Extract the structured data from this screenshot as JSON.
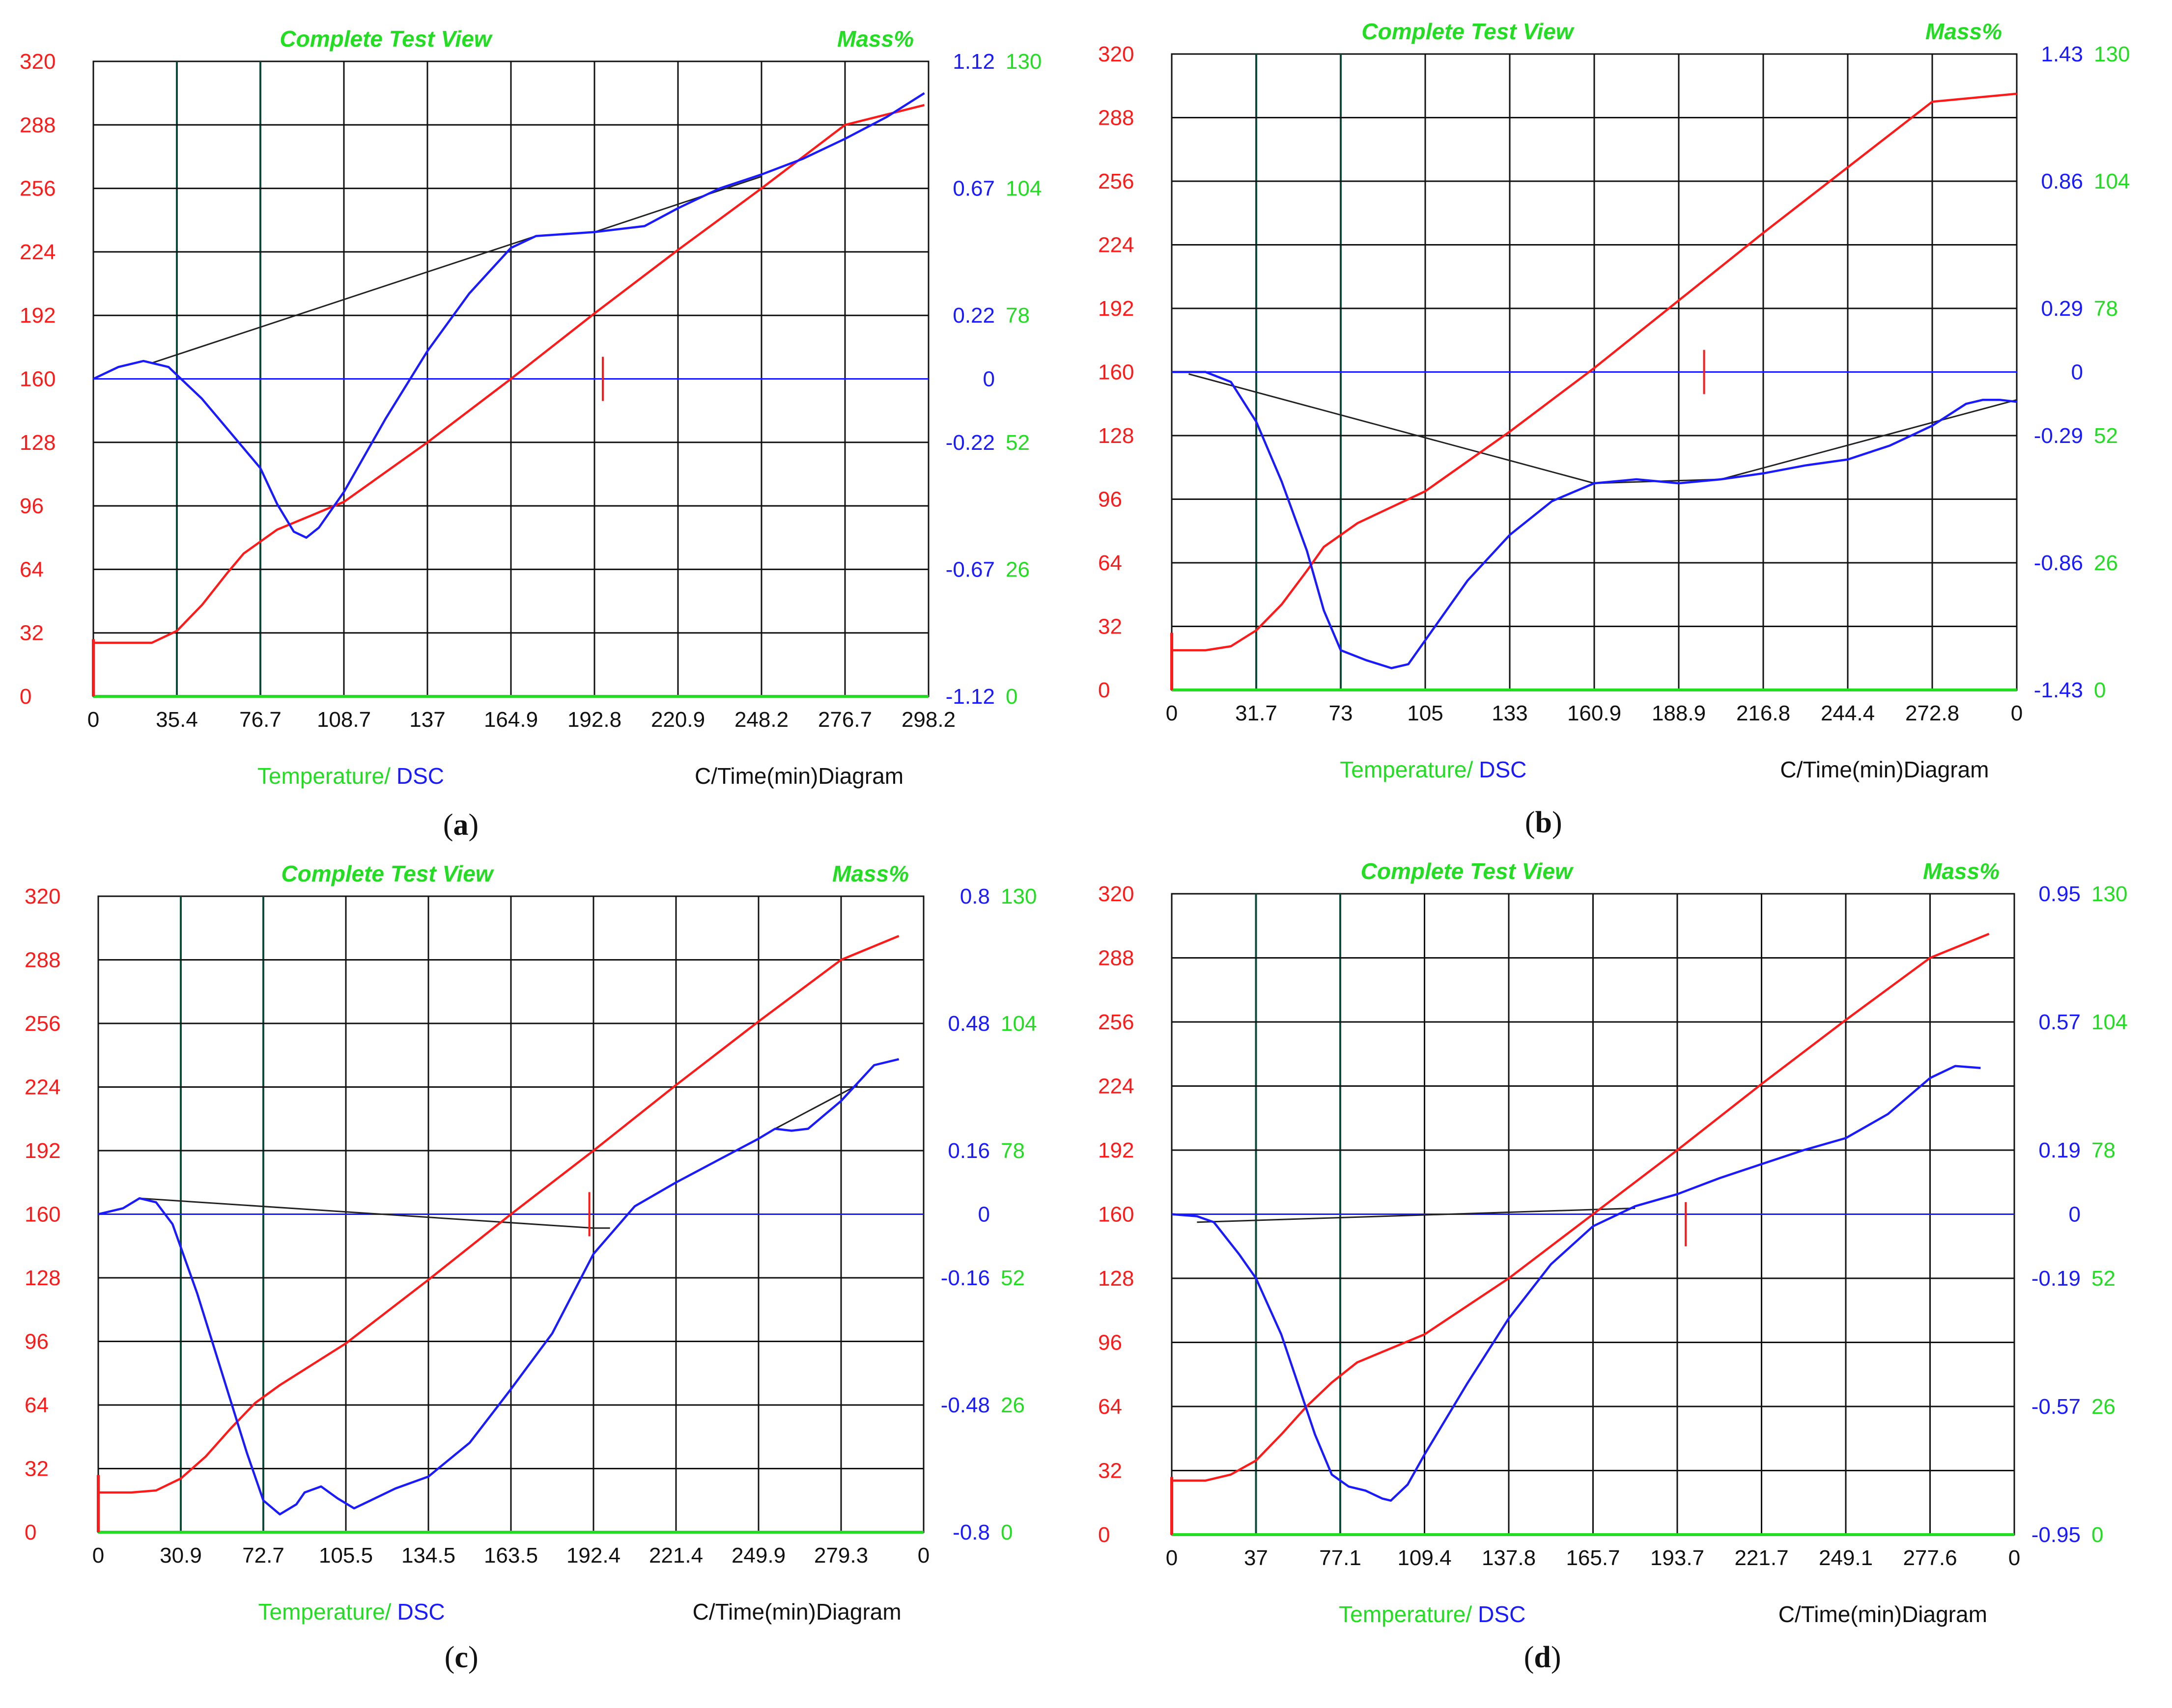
{
  "chart_data": [
    {
      "type": "line",
      "caption": "a",
      "title": "Complete Test View",
      "mass_label": "Mass%",
      "xlabel_left": "Temperature/",
      "xlabel_dsc": "DSC",
      "xlabel_right": "C/Time(min)Diagram",
      "x_ticks": [
        "0",
        "35.4",
        "76.7",
        "108.7",
        "137",
        "164.9",
        "192.8",
        "220.9",
        "248.2",
        "276.7",
        "298.2"
      ],
      "temp_ticks": [
        "320",
        "288",
        "256",
        "224",
        "192",
        "160",
        "128",
        "96",
        "64",
        "32",
        "0"
      ],
      "dsc_ticks": [
        "1.12",
        "",
        "0.67",
        "",
        "0.22",
        "0",
        "-0.22",
        "",
        "-0.67",
        "",
        "-1.12"
      ],
      "mass_ticks": [
        "130",
        "",
        "104",
        "",
        "78",
        "",
        "52",
        "",
        "26",
        "",
        "0"
      ],
      "xlim": [
        0,
        10
      ],
      "ylim": [
        0,
        320
      ],
      "temperature": [
        [
          0,
          27
        ],
        [
          0.4,
          27
        ],
        [
          0.7,
          27
        ],
        [
          1,
          33
        ],
        [
          1.3,
          46
        ],
        [
          1.6,
          62
        ],
        [
          1.8,
          72
        ],
        [
          2.2,
          84
        ],
        [
          3,
          98
        ],
        [
          4,
          128
        ],
        [
          5,
          160
        ],
        [
          6,
          193
        ],
        [
          7,
          225
        ],
        [
          8,
          256
        ],
        [
          9,
          288
        ],
        [
          9.95,
          298
        ]
      ],
      "dsc": [
        [
          0,
          160
        ],
        [
          0.3,
          166
        ],
        [
          0.6,
          169
        ],
        [
          0.9,
          166
        ],
        [
          1.3,
          150
        ],
        [
          1.7,
          130
        ],
        [
          2,
          115
        ],
        [
          2.2,
          97
        ],
        [
          2.4,
          83
        ],
        [
          2.55,
          80
        ],
        [
          2.7,
          85
        ],
        [
          3,
          103
        ],
        [
          3.5,
          140
        ],
        [
          4,
          174
        ],
        [
          4.5,
          203
        ],
        [
          5,
          226
        ],
        [
          5.3,
          232
        ],
        [
          6,
          234
        ],
        [
          6.6,
          237
        ],
        [
          7,
          246
        ],
        [
          7.5,
          256
        ],
        [
          8,
          263
        ],
        [
          8.5,
          271
        ],
        [
          9,
          281
        ],
        [
          9.5,
          292
        ],
        [
          9.95,
          304
        ]
      ],
      "baseline": [
        [
          0.7,
          168
        ],
        [
          5.3,
          232
        ],
        [
          6,
          234
        ],
        [
          8,
          262
        ]
      ],
      "marker": [
        6.1,
        160
      ]
    },
    {
      "type": "line",
      "caption": "b",
      "title": "Complete Test View",
      "mass_label": "Mass%",
      "xlabel_left": "Temperature/",
      "xlabel_dsc": "DSC",
      "xlabel_right": "C/Time(min)Diagram",
      "x_ticks": [
        "0",
        "31.7",
        "73",
        "105",
        "133",
        "160.9",
        "188.9",
        "216.8",
        "244.4",
        "272.8",
        "0"
      ],
      "temp_ticks": [
        "320",
        "288",
        "256",
        "224",
        "192",
        "160",
        "128",
        "96",
        "64",
        "32",
        "0"
      ],
      "dsc_ticks": [
        "1.43",
        "",
        "0.86",
        "",
        "0.29",
        "0",
        "-0.29",
        "",
        "-0.86",
        "",
        "-1.43"
      ],
      "mass_ticks": [
        "130",
        "",
        "104",
        "",
        "78",
        "",
        "52",
        "",
        "26",
        "",
        "0"
      ],
      "xlim": [
        0,
        10
      ],
      "ylim": [
        0,
        320
      ],
      "temperature": [
        [
          0,
          20
        ],
        [
          0.4,
          20
        ],
        [
          0.7,
          22
        ],
        [
          1,
          30
        ],
        [
          1.3,
          43
        ],
        [
          1.6,
          60
        ],
        [
          1.8,
          72
        ],
        [
          2.2,
          84
        ],
        [
          3,
          100
        ],
        [
          4,
          130
        ],
        [
          5,
          162
        ],
        [
          6,
          196
        ],
        [
          7,
          230
        ],
        [
          8,
          263
        ],
        [
          9,
          296
        ],
        [
          10,
          300
        ]
      ],
      "dsc": [
        [
          0,
          160
        ],
        [
          0.4,
          160
        ],
        [
          0.7,
          155
        ],
        [
          1,
          135
        ],
        [
          1.3,
          105
        ],
        [
          1.6,
          70
        ],
        [
          1.8,
          40
        ],
        [
          2,
          20
        ],
        [
          2.3,
          15
        ],
        [
          2.6,
          11
        ],
        [
          2.8,
          13
        ],
        [
          3,
          25
        ],
        [
          3.5,
          55
        ],
        [
          4,
          78
        ],
        [
          4.5,
          95
        ],
        [
          5,
          104
        ],
        [
          5.5,
          106
        ],
        [
          6,
          104
        ],
        [
          6.5,
          106
        ],
        [
          7,
          109
        ],
        [
          7.5,
          113
        ],
        [
          8,
          116
        ],
        [
          8.5,
          123
        ],
        [
          9,
          133
        ],
        [
          9.4,
          144
        ],
        [
          9.6,
          146
        ],
        [
          9.8,
          146
        ],
        [
          10,
          145
        ]
      ],
      "baseline": [
        [
          0.2,
          159
        ],
        [
          5,
          104
        ],
        [
          6.5,
          106
        ],
        [
          10,
          146
        ]
      ],
      "marker": [
        6.3,
        160
      ]
    },
    {
      "type": "line",
      "caption": "c",
      "title": "Complete Test View",
      "mass_label": "Mass%",
      "xlabel_left": "Temperature/",
      "xlabel_dsc": "DSC",
      "xlabel_right": "C/Time(min)Diagram",
      "x_ticks": [
        "0",
        "30.9",
        "72.7",
        "105.5",
        "134.5",
        "163.5",
        "192.4",
        "221.4",
        "249.9",
        "279.3",
        "0"
      ],
      "temp_ticks": [
        "320",
        "288",
        "256",
        "224",
        "192",
        "160",
        "128",
        "96",
        "64",
        "32",
        "0"
      ],
      "dsc_ticks": [
        "0.8",
        "",
        "0.48",
        "",
        "0.16",
        "0",
        "-0.16",
        "",
        "-0.48",
        "",
        "-0.8"
      ],
      "mass_ticks": [
        "130",
        "",
        "104",
        "",
        "78",
        "",
        "52",
        "",
        "26",
        "",
        "0"
      ],
      "xlim": [
        0,
        10
      ],
      "ylim": [
        0,
        320
      ],
      "temperature": [
        [
          0,
          20
        ],
        [
          0.4,
          20
        ],
        [
          0.7,
          21
        ],
        [
          1,
          27
        ],
        [
          1.3,
          38
        ],
        [
          1.6,
          52
        ],
        [
          1.9,
          65
        ],
        [
          2.2,
          74
        ],
        [
          3,
          95
        ],
        [
          4,
          127
        ],
        [
          5,
          160
        ],
        [
          6,
          192
        ],
        [
          7,
          225
        ],
        [
          8,
          257
        ],
        [
          9,
          288
        ],
        [
          9.7,
          300
        ]
      ],
      "dsc": [
        [
          0,
          160
        ],
        [
          0.3,
          163
        ],
        [
          0.5,
          168
        ],
        [
          0.7,
          166
        ],
        [
          0.9,
          155
        ],
        [
          1.2,
          120
        ],
        [
          1.5,
          80
        ],
        [
          1.8,
          40
        ],
        [
          2,
          16
        ],
        [
          2.2,
          9
        ],
        [
          2.4,
          14
        ],
        [
          2.5,
          20
        ],
        [
          2.7,
          23
        ],
        [
          2.9,
          17
        ],
        [
          3.1,
          12
        ],
        [
          3.3,
          16
        ],
        [
          3.6,
          22
        ],
        [
          4,
          28
        ],
        [
          4.5,
          45
        ],
        [
          5,
          72
        ],
        [
          5.5,
          100
        ],
        [
          6,
          140
        ],
        [
          6.5,
          164
        ],
        [
          7,
          176
        ],
        [
          7.5,
          187
        ],
        [
          8,
          198
        ],
        [
          8.2,
          203
        ],
        [
          8.4,
          202
        ],
        [
          8.6,
          203
        ],
        [
          9,
          217
        ],
        [
          9.4,
          235
        ],
        [
          9.7,
          238
        ]
      ],
      "baseline": [
        [
          0.5,
          168
        ],
        [
          6,
          153
        ],
        [
          6.2,
          153
        ]
      ],
      "baseline2": [
        [
          8.2,
          203
        ],
        [
          9.2,
          225
        ]
      ],
      "marker": [
        5.95,
        160
      ]
    },
    {
      "type": "line",
      "caption": "d",
      "title": "Complete Test View",
      "mass_label": "Mass%",
      "xlabel_left": "Temperature/",
      "xlabel_dsc": "DSC",
      "xlabel_right": "C/Time(min)Diagram",
      "x_ticks": [
        "0",
        "37",
        "77.1",
        "109.4",
        "137.8",
        "165.7",
        "193.7",
        "221.7",
        "249.1",
        "277.6",
        "0"
      ],
      "temp_ticks": [
        "320",
        "288",
        "256",
        "224",
        "192",
        "160",
        "128",
        "96",
        "64",
        "32",
        "0"
      ],
      "dsc_ticks": [
        "0.95",
        "",
        "0.57",
        "",
        "0.19",
        "0",
        "-0.19",
        "",
        "-0.57",
        "",
        "-0.95"
      ],
      "mass_ticks": [
        "130",
        "",
        "104",
        "",
        "78",
        "",
        "52",
        "",
        "26",
        "",
        "0"
      ],
      "xlim": [
        0,
        10
      ],
      "ylim": [
        0,
        320
      ],
      "temperature": [
        [
          0,
          27
        ],
        [
          0.4,
          27
        ],
        [
          0.7,
          30
        ],
        [
          1,
          37
        ],
        [
          1.3,
          50
        ],
        [
          1.6,
          64
        ],
        [
          1.9,
          76
        ],
        [
          2.2,
          86
        ],
        [
          3,
          100
        ],
        [
          4,
          128
        ],
        [
          5,
          160
        ],
        [
          6,
          192
        ],
        [
          7,
          225
        ],
        [
          8,
          257
        ],
        [
          9,
          288
        ],
        [
          9.7,
          300
        ]
      ],
      "dsc": [
        [
          0,
          160
        ],
        [
          0.3,
          159
        ],
        [
          0.5,
          156
        ],
        [
          0.8,
          140
        ],
        [
          1,
          128
        ],
        [
          1.3,
          100
        ],
        [
          1.5,
          75
        ],
        [
          1.7,
          50
        ],
        [
          1.9,
          30
        ],
        [
          2.1,
          24
        ],
        [
          2.3,
          22
        ],
        [
          2.5,
          18
        ],
        [
          2.6,
          17
        ],
        [
          2.8,
          25
        ],
        [
          3,
          40
        ],
        [
          3.5,
          75
        ],
        [
          4,
          108
        ],
        [
          4.5,
          135
        ],
        [
          5,
          154
        ],
        [
          5.5,
          164
        ],
        [
          6,
          170
        ],
        [
          6.5,
          178
        ],
        [
          7,
          185
        ],
        [
          7.5,
          192
        ],
        [
          8,
          198
        ],
        [
          8.5,
          210
        ],
        [
          9,
          228
        ],
        [
          9.3,
          234
        ],
        [
          9.6,
          233
        ]
      ],
      "baseline": [
        [
          0.3,
          156
        ],
        [
          5.5,
          163
        ]
      ],
      "marker": [
        6.1,
        155
      ]
    }
  ]
}
